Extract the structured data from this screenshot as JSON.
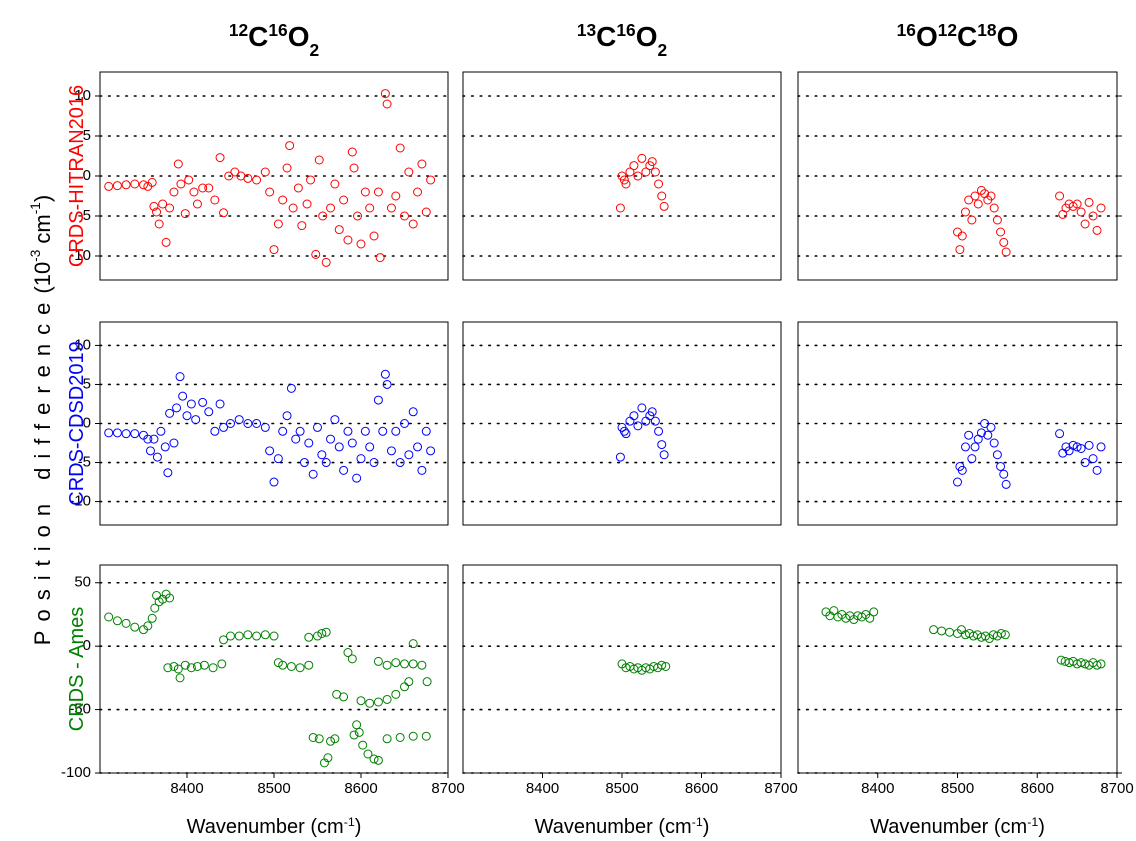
{
  "ylabel": [
    {
      "text": "Position difference",
      "style": "spaced"
    },
    {
      "text": "(10"
    },
    {
      "text": "-3",
      "style": "sup"
    },
    {
      "text": " cm"
    },
    {
      "text": "-1",
      "style": "sup"
    },
    {
      "text": ")"
    }
  ],
  "chart_data": [
    {
      "type": "scatter",
      "title": [
        {
          "text": "12",
          "style": "sup"
        },
        {
          "text": "C"
        },
        {
          "text": "16",
          "style": "sup"
        },
        {
          "text": "O"
        },
        {
          "text": "2",
          "style": "sub"
        }
      ],
      "ylabel": [
        {
          "text": "CRDS-HITRAN2016"
        }
      ],
      "color": "#ff0000",
      "xlim": [
        8300,
        8700
      ],
      "ylim": [
        -13,
        13
      ],
      "yticks": [
        -10,
        -5,
        0,
        5,
        10
      ],
      "ytick_labels": true,
      "grid": true,
      "x": [
        8310,
        8320,
        8330,
        8340,
        8350,
        8355,
        8360,
        8362,
        8365,
        8368,
        8372,
        8376,
        8380,
        8385,
        8390,
        8393,
        8398,
        8402,
        8408,
        8412,
        8418,
        8425,
        8432,
        8438,
        8442,
        8448,
        8455,
        8462,
        8470,
        8480,
        8490,
        8495,
        8500,
        8505,
        8510,
        8515,
        8518,
        8522,
        8528,
        8532,
        8538,
        8542,
        8548,
        8552,
        8556,
        8560,
        8565,
        8570,
        8575,
        8580,
        8585,
        8590,
        8592,
        8596,
        8600,
        8605,
        8610,
        8615,
        8620,
        8622,
        8628,
        8630,
        8635,
        8640,
        8645,
        8650,
        8655,
        8660,
        8665,
        8670,
        8675,
        8680
      ],
      "values": [
        -1.3,
        -1.2,
        -1.1,
        -1.0,
        -1.1,
        -1.3,
        -0.8,
        -3.8,
        -4.5,
        -6,
        -3.5,
        -8.3,
        -4,
        -2,
        1.5,
        -1,
        -4.7,
        -0.5,
        -2,
        -3.5,
        -1.5,
        -1.5,
        -3,
        2.3,
        -4.6,
        0,
        0.5,
        0,
        -0.3,
        -0.5,
        0.5,
        -2,
        -9.2,
        -6,
        -3,
        1,
        3.8,
        -4,
        -1.5,
        -6.2,
        -3.5,
        -0.5,
        -9.8,
        2,
        -5,
        -10.8,
        -4,
        -1,
        -6.7,
        -3,
        -8,
        3,
        1,
        -5,
        -8.5,
        -2,
        -4,
        -7.5,
        -2,
        -10.2,
        10.3,
        9,
        -4,
        -2.5,
        3.5,
        -5,
        0.5,
        -6,
        -2,
        1.5,
        -4.5,
        -0.5
      ]
    },
    {
      "type": "scatter",
      "title": [
        {
          "text": "13",
          "style": "sup"
        },
        {
          "text": "C"
        },
        {
          "text": "16",
          "style": "sup"
        },
        {
          "text": "O"
        },
        {
          "text": "2",
          "style": "sub"
        }
      ],
      "color": "#ff0000",
      "xlim": [
        8300,
        8700
      ],
      "ylim": [
        -13,
        13
      ],
      "yticks": [
        -10,
        -5,
        0,
        5,
        10
      ],
      "ytick_labels": false,
      "grid": true,
      "x": [
        8498,
        8500,
        8503,
        8505,
        8510,
        8515,
        8520,
        8525,
        8530,
        8535,
        8538,
        8542,
        8546,
        8550,
        8553
      ],
      "values": [
        -4,
        0,
        -0.5,
        -1,
        0.5,
        1.3,
        0,
        2.2,
        0.5,
        1.3,
        1.8,
        0.5,
        -1,
        -2.5,
        -3.8
      ]
    },
    {
      "type": "scatter",
      "title": [
        {
          "text": "16",
          "style": "sup"
        },
        {
          "text": "O"
        },
        {
          "text": "12",
          "style": "sup"
        },
        {
          "text": "C"
        },
        {
          "text": "18",
          "style": "sup"
        },
        {
          "text": "O"
        }
      ],
      "color": "#ff0000",
      "xlim": [
        8300,
        8700
      ],
      "ylim": [
        -13,
        13
      ],
      "yticks": [
        -10,
        -5,
        0,
        5,
        10
      ],
      "ytick_labels": false,
      "grid": true,
      "x": [
        8500,
        8503,
        8506,
        8510,
        8514,
        8518,
        8522,
        8526,
        8530,
        8534,
        8538,
        8542,
        8546,
        8550,
        8554,
        8558,
        8561,
        8628,
        8632,
        8636,
        8640,
        8645,
        8650,
        8655,
        8660,
        8665,
        8670,
        8675,
        8680
      ],
      "values": [
        -7,
        -9.2,
        -7.5,
        -4.5,
        -3,
        -5.5,
        -2.5,
        -3.5,
        -1.8,
        -2.2,
        -3,
        -2.5,
        -4,
        -5.5,
        -7,
        -8.3,
        -9.5,
        -2.5,
        -4.8,
        -4,
        -3.5,
        -3.8,
        -3.5,
        -4.5,
        -6,
        -3.3,
        -5,
        -6.8,
        -4
      ]
    },
    {
      "type": "scatter",
      "ylabel": [
        {
          "text": "CRDS-CDSD2019"
        }
      ],
      "color": "#0000ff",
      "xlim": [
        8300,
        8700
      ],
      "ylim": [
        -13,
        13
      ],
      "yticks": [
        -10,
        -5,
        0,
        5,
        10
      ],
      "ytick_labels": true,
      "grid": true,
      "x": [
        8310,
        8320,
        8330,
        8340,
        8350,
        8355,
        8358,
        8362,
        8366,
        8370,
        8375,
        8378,
        8380,
        8385,
        8388,
        8392,
        8395,
        8400,
        8405,
        8410,
        8418,
        8425,
        8432,
        8438,
        8442,
        8450,
        8460,
        8470,
        8480,
        8490,
        8495,
        8500,
        8505,
        8510,
        8515,
        8520,
        8525,
        8530,
        8535,
        8540,
        8545,
        8550,
        8555,
        8560,
        8565,
        8570,
        8575,
        8580,
        8585,
        8590,
        8595,
        8600,
        8605,
        8610,
        8615,
        8620,
        8625,
        8628,
        8630,
        8635,
        8640,
        8645,
        8650,
        8655,
        8660,
        8665,
        8670,
        8675,
        8680
      ],
      "values": [
        -1.2,
        -1.2,
        -1.3,
        -1.3,
        -1.5,
        -2,
        -3.5,
        -2,
        -4.3,
        -1,
        -3,
        -6.3,
        1.3,
        -2.5,
        2,
        6,
        3.5,
        1,
        2.5,
        0.5,
        2.7,
        1.5,
        -1,
        2.5,
        -0.5,
        0,
        0.5,
        0,
        0,
        -0.5,
        -3.5,
        -7.5,
        -4.5,
        -1,
        1,
        4.5,
        -2,
        -1,
        -5,
        -2.5,
        -6.5,
        -0.5,
        -4,
        -5,
        -2,
        0.5,
        -3,
        -6,
        -1,
        -2.5,
        -7,
        -4.5,
        -1,
        -3,
        -5,
        3,
        -1,
        6.3,
        5,
        -3.5,
        -1,
        -5,
        0,
        -4,
        1.5,
        -3,
        -6,
        -1,
        -3.5
      ]
    },
    {
      "type": "scatter",
      "color": "#0000ff",
      "xlim": [
        8300,
        8700
      ],
      "ylim": [
        -13,
        13
      ],
      "yticks": [
        -10,
        -5,
        0,
        5,
        10
      ],
      "ytick_labels": false,
      "grid": true,
      "x": [
        8498,
        8500,
        8503,
        8505,
        8510,
        8515,
        8520,
        8525,
        8530,
        8535,
        8538,
        8542,
        8546,
        8550,
        8553
      ],
      "values": [
        -4.3,
        -0.5,
        -1,
        -1.3,
        0.3,
        1,
        -0.3,
        2,
        0.3,
        1,
        1.5,
        0.3,
        -1,
        -2.7,
        -4
      ]
    },
    {
      "type": "scatter",
      "color": "#0000ff",
      "xlim": [
        8300,
        8700
      ],
      "ylim": [
        -13,
        13
      ],
      "yticks": [
        -10,
        -5,
        0,
        5,
        10
      ],
      "ytick_labels": false,
      "grid": true,
      "x": [
        8500,
        8503,
        8506,
        8510,
        8514,
        8518,
        8522,
        8526,
        8530,
        8534,
        8538,
        8542,
        8546,
        8550,
        8554,
        8558,
        8561,
        8628,
        8632,
        8636,
        8640,
        8645,
        8650,
        8655,
        8660,
        8665,
        8670,
        8675,
        8680
      ],
      "values": [
        -7.5,
        -5.5,
        -6,
        -3,
        -1.5,
        -4.5,
        -3,
        -2,
        -1.2,
        0,
        -1.5,
        -0.5,
        -2.5,
        -4,
        -5.5,
        -6.5,
        -7.8,
        -1.3,
        -3.8,
        -3,
        -3.5,
        -2.8,
        -3,
        -3.2,
        -5,
        -2.8,
        -4.5,
        -6,
        -3
      ]
    },
    {
      "type": "scatter",
      "ylabel": [
        {
          "text": "CRDS - Ames"
        }
      ],
      "xlabel": [
        {
          "text": "Wavenumber (cm"
        },
        {
          "text": "-1",
          "style": "sup"
        },
        {
          "text": ")"
        }
      ],
      "color": "#008000",
      "xlim": [
        8300,
        8700
      ],
      "ylim": [
        -100,
        64
      ],
      "xticks": [
        8400,
        8500,
        8600,
        8700
      ],
      "yticks": [
        -100,
        -50,
        0,
        50
      ],
      "ytick_labels": true,
      "grid": true,
      "x": [
        8310,
        8320,
        8330,
        8340,
        8350,
        8355,
        8360,
        8363,
        8365,
        8368,
        8372,
        8376,
        8380,
        8378,
        8385,
        8390,
        8392,
        8398,
        8405,
        8412,
        8420,
        8430,
        8440,
        8442,
        8450,
        8460,
        8470,
        8480,
        8490,
        8500,
        8505,
        8510,
        8520,
        8530,
        8540,
        8540,
        8550,
        8555,
        8560,
        8545,
        8552,
        8558,
        8562,
        8565,
        8570,
        8572,
        8580,
        8590,
        8585,
        8592,
        8595,
        8598,
        8602,
        8608,
        8615,
        8620,
        8600,
        8610,
        8620,
        8630,
        8640,
        8650,
        8655,
        8620,
        8630,
        8640,
        8650,
        8660,
        8670,
        8676,
        8630,
        8645,
        8660,
        8675,
        8660
      ],
      "values": [
        23,
        20,
        18,
        15,
        13,
        16,
        22,
        30,
        40,
        35,
        37,
        41,
        38,
        -17,
        -16,
        -18,
        -25,
        -15,
        -17,
        -16,
        -15,
        -17,
        -14,
        5,
        8,
        8,
        9,
        8,
        9,
        8,
        -13,
        -15,
        -16,
        -17,
        -15,
        7,
        8,
        10,
        11,
        -72,
        -73,
        -92,
        -88,
        -75,
        -73,
        -38,
        -40,
        -10,
        -5,
        -70,
        -62,
        -68,
        -78,
        -85,
        -89,
        -90,
        -43,
        -45,
        -44,
        -42,
        -38,
        -32,
        -28,
        -12,
        -15,
        -13,
        -14,
        -14,
        -15,
        -28,
        -73,
        -72,
        -71,
        -71,
        2
      ]
    },
    {
      "type": "scatter",
      "xlabel": [
        {
          "text": "Wavenumber (cm"
        },
        {
          "text": "-1",
          "style": "sup"
        },
        {
          "text": ")"
        }
      ],
      "color": "#008000",
      "xlim": [
        8300,
        8700
      ],
      "ylim": [
        -100,
        64
      ],
      "xticks": [
        8400,
        8500,
        8600,
        8700
      ],
      "yticks": [
        -100,
        -50,
        0,
        50
      ],
      "ytick_labels": false,
      "grid": true,
      "x": [
        8500,
        8505,
        8510,
        8515,
        8520,
        8525,
        8530,
        8535,
        8540,
        8545,
        8550,
        8555
      ],
      "values": [
        -14,
        -17,
        -16,
        -18,
        -17,
        -19,
        -17,
        -18,
        -16,
        -17,
        -15,
        -16
      ]
    },
    {
      "type": "scatter",
      "xlabel": [
        {
          "text": "Wavenumber (cm"
        },
        {
          "text": "-1",
          "style": "sup"
        },
        {
          "text": ")"
        }
      ],
      "color": "#008000",
      "xlim": [
        8300,
        8700
      ],
      "ylim": [
        -100,
        64
      ],
      "xticks": [
        8400,
        8500,
        8600,
        8700
      ],
      "yticks": [
        -100,
        -50,
        0,
        50
      ],
      "ytick_labels": false,
      "grid": true,
      "x": [
        8335,
        8340,
        8345,
        8350,
        8355,
        8360,
        8365,
        8370,
        8375,
        8380,
        8385,
        8390,
        8395,
        8470,
        8480,
        8490,
        8500,
        8505,
        8510,
        8515,
        8520,
        8525,
        8530,
        8535,
        8540,
        8545,
        8550,
        8555,
        8560,
        8630,
        8635,
        8640,
        8645,
        8650,
        8655,
        8660,
        8665,
        8670,
        8675,
        8680
      ],
      "values": [
        27,
        24,
        28,
        23,
        25,
        22,
        24,
        21,
        24,
        23,
        25,
        22,
        27,
        13,
        12,
        11,
        10,
        13,
        9,
        10,
        8,
        9,
        7,
        8,
        6,
        9,
        8,
        10,
        9,
        -11,
        -12,
        -13,
        -12,
        -14,
        -13,
        -14,
        -15,
        -13,
        -15,
        -14
      ]
    }
  ]
}
